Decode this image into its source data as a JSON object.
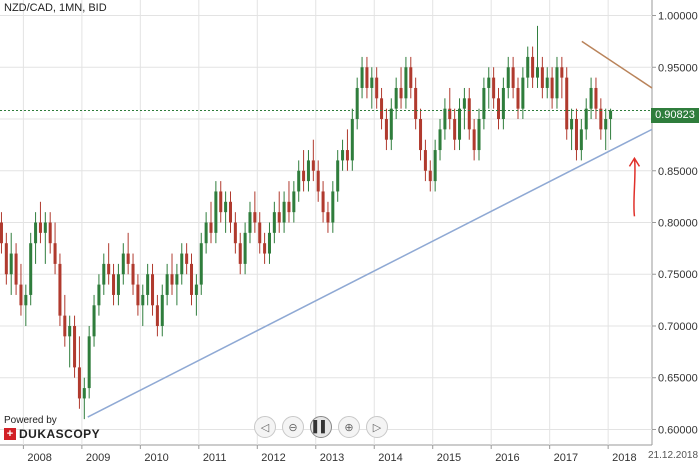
{
  "header": {
    "title": "NZD/CAD, 1MN, BID"
  },
  "price_tag": {
    "value": "0.90823"
  },
  "date_tag": {
    "value": "21.12.2018"
  },
  "branding": {
    "powered_by": "Powered by",
    "brand_name": "DUKASCOPY",
    "mark": "+"
  },
  "navigation": {
    "buttons": [
      {
        "icon": "chevron-left-icon",
        "glyph": "◁"
      },
      {
        "icon": "zoom-out-icon",
        "glyph": "⊖"
      },
      {
        "icon": "pause-icon",
        "glyph": "▌▌"
      },
      {
        "icon": "zoom-in-icon",
        "glyph": "⊕"
      },
      {
        "icon": "chevron-right-icon",
        "glyph": "▷"
      }
    ]
  },
  "colors": {
    "up": "#2f7d3c",
    "down": "#b03a2e",
    "support": "#8fa9d4",
    "resistance": "#b9835a",
    "price_line": "#2f7d3c",
    "arrow": "#e0302a",
    "grid": "#e3e3e3"
  },
  "chart_data": {
    "type": "candlestick",
    "title": "NZD/CAD, 1MN, BID",
    "x_ticks": [
      "2008",
      "2009",
      "2010",
      "2011",
      "2012",
      "2013",
      "2014",
      "2015",
      "2016",
      "2017",
      "2018"
    ],
    "y_ticks": [
      "1.00000",
      "0.95000",
      "0.90000",
      "0.85000",
      "0.80000",
      "0.75000",
      "0.70000",
      "0.65000",
      "0.60000"
    ],
    "xlim": [
      2007.6,
      2018.75
    ],
    "ylim": [
      0.585,
      1.015
    ],
    "grid": true,
    "current_price": 0.90823,
    "candles": [
      [
        0.8,
        0.81,
        0.77,
        0.78
      ],
      [
        0.78,
        0.79,
        0.74,
        0.75
      ],
      [
        0.75,
        0.79,
        0.73,
        0.77
      ],
      [
        0.77,
        0.78,
        0.73,
        0.74
      ],
      [
        0.74,
        0.76,
        0.71,
        0.72
      ],
      [
        0.72,
        0.74,
        0.7,
        0.73
      ],
      [
        0.73,
        0.79,
        0.72,
        0.78
      ],
      [
        0.78,
        0.81,
        0.76,
        0.8
      ],
      [
        0.8,
        0.82,
        0.78,
        0.79
      ],
      [
        0.79,
        0.81,
        0.76,
        0.8
      ],
      [
        0.8,
        0.81,
        0.77,
        0.78
      ],
      [
        0.78,
        0.8,
        0.75,
        0.76
      ],
      [
        0.76,
        0.77,
        0.7,
        0.71
      ],
      [
        0.71,
        0.73,
        0.68,
        0.69
      ],
      [
        0.69,
        0.71,
        0.66,
        0.7
      ],
      [
        0.7,
        0.71,
        0.65,
        0.66
      ],
      [
        0.66,
        0.69,
        0.62,
        0.63
      ],
      [
        0.63,
        0.65,
        0.61,
        0.64
      ],
      [
        0.64,
        0.7,
        0.63,
        0.69
      ],
      [
        0.69,
        0.73,
        0.68,
        0.72
      ],
      [
        0.72,
        0.75,
        0.71,
        0.74
      ],
      [
        0.74,
        0.77,
        0.73,
        0.76
      ],
      [
        0.76,
        0.78,
        0.74,
        0.75
      ],
      [
        0.75,
        0.76,
        0.72,
        0.73
      ],
      [
        0.73,
        0.76,
        0.72,
        0.75
      ],
      [
        0.75,
        0.78,
        0.74,
        0.77
      ],
      [
        0.77,
        0.79,
        0.75,
        0.76
      ],
      [
        0.76,
        0.77,
        0.73,
        0.74
      ],
      [
        0.74,
        0.75,
        0.71,
        0.72
      ],
      [
        0.72,
        0.74,
        0.7,
        0.73
      ],
      [
        0.73,
        0.76,
        0.72,
        0.75
      ],
      [
        0.75,
        0.76,
        0.71,
        0.72
      ],
      [
        0.72,
        0.73,
        0.69,
        0.7
      ],
      [
        0.7,
        0.74,
        0.69,
        0.73
      ],
      [
        0.73,
        0.76,
        0.72,
        0.75
      ],
      [
        0.75,
        0.77,
        0.73,
        0.74
      ],
      [
        0.74,
        0.76,
        0.72,
        0.75
      ],
      [
        0.75,
        0.78,
        0.74,
        0.77
      ],
      [
        0.77,
        0.78,
        0.75,
        0.76
      ],
      [
        0.76,
        0.77,
        0.72,
        0.73
      ],
      [
        0.73,
        0.75,
        0.71,
        0.74
      ],
      [
        0.74,
        0.79,
        0.73,
        0.78
      ],
      [
        0.78,
        0.81,
        0.77,
        0.8
      ],
      [
        0.8,
        0.82,
        0.78,
        0.79
      ],
      [
        0.79,
        0.84,
        0.78,
        0.83
      ],
      [
        0.83,
        0.84,
        0.8,
        0.81
      ],
      [
        0.81,
        0.83,
        0.79,
        0.82
      ],
      [
        0.82,
        0.83,
        0.79,
        0.8
      ],
      [
        0.8,
        0.81,
        0.77,
        0.78
      ],
      [
        0.78,
        0.79,
        0.75,
        0.76
      ],
      [
        0.76,
        0.8,
        0.75,
        0.79
      ],
      [
        0.79,
        0.82,
        0.78,
        0.81
      ],
      [
        0.81,
        0.83,
        0.79,
        0.8
      ],
      [
        0.8,
        0.81,
        0.77,
        0.78
      ],
      [
        0.78,
        0.79,
        0.76,
        0.77
      ],
      [
        0.77,
        0.8,
        0.76,
        0.79
      ],
      [
        0.79,
        0.82,
        0.78,
        0.81
      ],
      [
        0.81,
        0.83,
        0.79,
        0.8
      ],
      [
        0.8,
        0.83,
        0.79,
        0.82
      ],
      [
        0.82,
        0.84,
        0.8,
        0.81
      ],
      [
        0.81,
        0.84,
        0.8,
        0.83
      ],
      [
        0.83,
        0.86,
        0.82,
        0.85
      ],
      [
        0.85,
        0.87,
        0.83,
        0.84
      ],
      [
        0.84,
        0.87,
        0.83,
        0.86
      ],
      [
        0.86,
        0.88,
        0.84,
        0.85
      ],
      [
        0.85,
        0.86,
        0.82,
        0.83
      ],
      [
        0.83,
        0.84,
        0.8,
        0.81
      ],
      [
        0.81,
        0.82,
        0.79,
        0.8
      ],
      [
        0.8,
        0.84,
        0.79,
        0.83
      ],
      [
        0.83,
        0.87,
        0.82,
        0.86
      ],
      [
        0.86,
        0.88,
        0.85,
        0.87
      ],
      [
        0.87,
        0.89,
        0.85,
        0.86
      ],
      [
        0.86,
        0.91,
        0.85,
        0.9
      ],
      [
        0.9,
        0.94,
        0.89,
        0.93
      ],
      [
        0.93,
        0.96,
        0.92,
        0.95
      ],
      [
        0.95,
        0.96,
        0.92,
        0.93
      ],
      [
        0.93,
        0.95,
        0.91,
        0.94
      ],
      [
        0.94,
        0.95,
        0.91,
        0.92
      ],
      [
        0.92,
        0.93,
        0.89,
        0.9
      ],
      [
        0.9,
        0.91,
        0.87,
        0.88
      ],
      [
        0.88,
        0.92,
        0.87,
        0.91
      ],
      [
        0.91,
        0.94,
        0.9,
        0.93
      ],
      [
        0.93,
        0.95,
        0.91,
        0.92
      ],
      [
        0.92,
        0.96,
        0.91,
        0.95
      ],
      [
        0.95,
        0.96,
        0.92,
        0.93
      ],
      [
        0.93,
        0.94,
        0.89,
        0.9
      ],
      [
        0.9,
        0.91,
        0.86,
        0.87
      ],
      [
        0.87,
        0.88,
        0.84,
        0.85
      ],
      [
        0.85,
        0.86,
        0.83,
        0.84
      ],
      [
        0.84,
        0.88,
        0.83,
        0.87
      ],
      [
        0.87,
        0.9,
        0.86,
        0.89
      ],
      [
        0.89,
        0.92,
        0.88,
        0.91
      ],
      [
        0.91,
        0.93,
        0.89,
        0.9
      ],
      [
        0.9,
        0.91,
        0.87,
        0.88
      ],
      [
        0.88,
        0.92,
        0.87,
        0.91
      ],
      [
        0.91,
        0.93,
        0.89,
        0.92
      ],
      [
        0.92,
        0.93,
        0.88,
        0.89
      ],
      [
        0.89,
        0.9,
        0.86,
        0.87
      ],
      [
        0.87,
        0.91,
        0.86,
        0.9
      ],
      [
        0.9,
        0.94,
        0.89,
        0.93
      ],
      [
        0.93,
        0.95,
        0.91,
        0.94
      ],
      [
        0.94,
        0.95,
        0.91,
        0.92
      ],
      [
        0.92,
        0.93,
        0.89,
        0.9
      ],
      [
        0.9,
        0.94,
        0.89,
        0.93
      ],
      [
        0.93,
        0.96,
        0.92,
        0.95
      ],
      [
        0.95,
        0.96,
        0.92,
        0.93
      ],
      [
        0.93,
        0.94,
        0.9,
        0.91
      ],
      [
        0.91,
        0.95,
        0.9,
        0.94
      ],
      [
        0.94,
        0.97,
        0.93,
        0.96
      ],
      [
        0.96,
        0.97,
        0.93,
        0.94
      ],
      [
        0.94,
        0.99,
        0.93,
        0.95
      ],
      [
        0.95,
        0.96,
        0.92,
        0.93
      ],
      [
        0.93,
        0.95,
        0.92,
        0.94
      ],
      [
        0.94,
        0.95,
        0.91,
        0.92
      ],
      [
        0.92,
        0.96,
        0.91,
        0.95
      ],
      [
        0.95,
        0.96,
        0.92,
        0.94
      ],
      [
        0.94,
        0.95,
        0.88,
        0.89
      ],
      [
        0.89,
        0.91,
        0.87,
        0.9
      ],
      [
        0.9,
        0.91,
        0.86,
        0.87
      ],
      [
        0.87,
        0.9,
        0.86,
        0.89
      ],
      [
        0.89,
        0.92,
        0.88,
        0.91
      ],
      [
        0.91,
        0.94,
        0.9,
        0.93
      ],
      [
        0.93,
        0.94,
        0.9,
        0.91
      ],
      [
        0.91,
        0.92,
        0.88,
        0.89
      ],
      [
        0.89,
        0.91,
        0.87,
        0.9
      ],
      [
        0.9,
        0.91,
        0.88,
        0.908
      ]
    ],
    "trendlines": [
      {
        "kind": "support",
        "x": [
          2009.1,
          2018.75
        ],
        "y": [
          0.612,
          0.89
        ]
      },
      {
        "kind": "resistance",
        "x": [
          2017.55,
          2018.75
        ],
        "y": [
          0.975,
          0.93
        ]
      }
    ],
    "annotations": [
      {
        "kind": "arrow",
        "direction": "up",
        "x": 2018.45,
        "y_from": 0.806,
        "y_to": 0.862
      }
    ]
  }
}
